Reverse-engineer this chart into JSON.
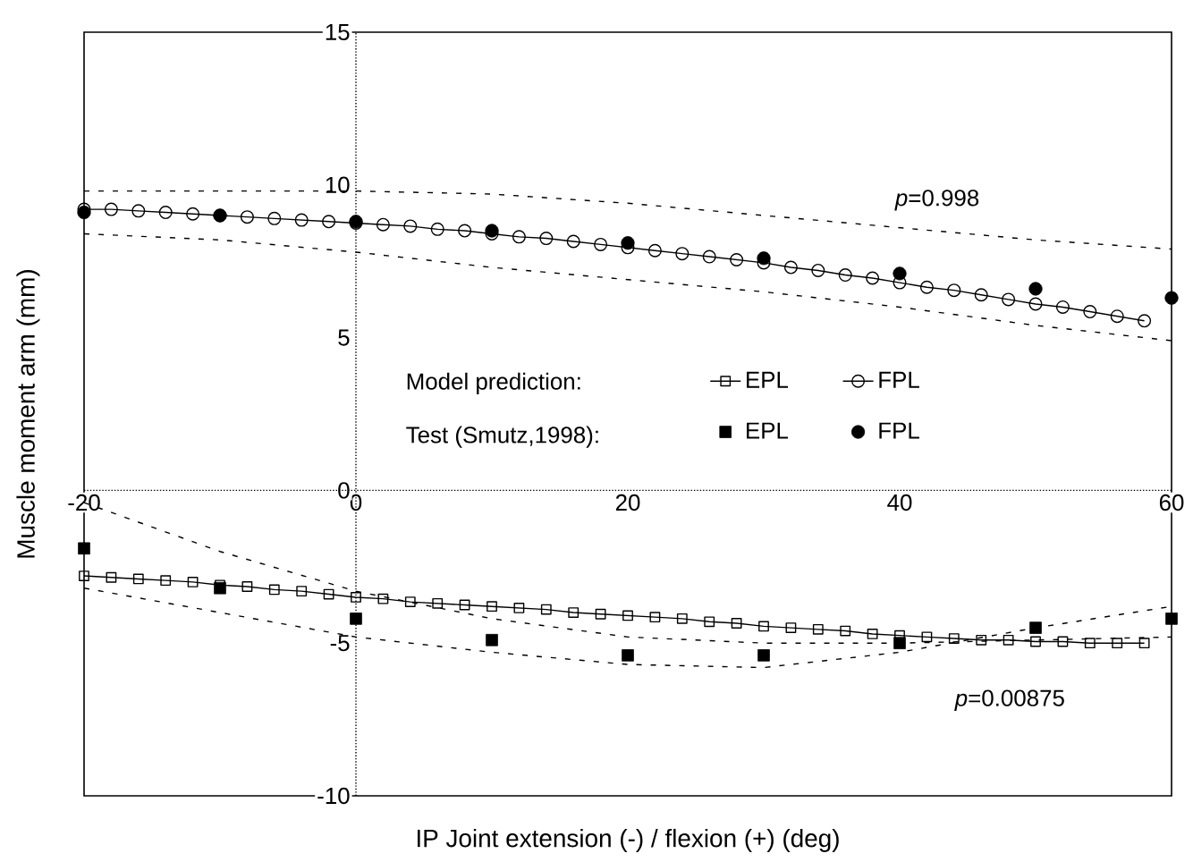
{
  "chart_data": {
    "type": "line",
    "xlabel": "IP Joint extension (-) / flexion (+) (deg)",
    "ylabel": "Muscle moment arm (mm)",
    "xlim": [
      -20,
      60
    ],
    "ylim": [
      -10,
      15
    ],
    "xticks": [
      -20,
      0,
      20,
      40,
      60
    ],
    "yticks": [
      -10,
      -5,
      0,
      5,
      10,
      15
    ],
    "legend": "center right",
    "annotations": [
      "Model prediction:",
      "Test (Smutz,1998):",
      "*p*=0.998",
      "*p*=0.00875"
    ],
    "series": [
      {
        "name": "EPL",
        "marker": "square",
        "color": "#000000",
        "x": [
          -20,
          -18,
          -16,
          -14,
          -12,
          -10,
          -8,
          -6,
          -4,
          -2,
          0,
          2,
          4,
          6,
          8,
          10,
          12,
          14,
          16,
          18,
          20,
          22,
          24,
          26,
          28,
          30,
          32,
          34,
          36,
          38,
          40,
          42,
          44,
          46,
          48,
          50,
          52,
          54,
          56,
          58
        ],
        "values": [
          -2.8,
          -2.85,
          -2.9,
          -2.95,
          -3.0,
          -3.1,
          -3.15,
          -3.25,
          -3.3,
          -3.4,
          -3.5,
          -3.55,
          -3.65,
          -3.7,
          -3.75,
          -3.8,
          -3.85,
          -3.9,
          -4.0,
          -4.05,
          -4.1,
          -4.15,
          -4.2,
          -4.3,
          -4.35,
          -4.45,
          -4.5,
          -4.55,
          -4.6,
          -4.7,
          -4.75,
          -4.8,
          -4.85,
          -4.9,
          -4.9,
          -4.95,
          -4.95,
          -5.0,
          -5.0,
          -5.0
        ]
      },
      {
        "name": "FPL",
        "marker": "circle",
        "color": "#000000",
        "x": [
          -20,
          -18,
          -16,
          -14,
          -12,
          -10,
          -8,
          -6,
          -4,
          -2,
          0,
          2,
          4,
          6,
          8,
          10,
          12,
          14,
          16,
          18,
          20,
          22,
          24,
          26,
          28,
          30,
          32,
          34,
          36,
          38,
          40,
          42,
          44,
          46,
          48,
          50,
          52,
          54,
          56,
          58
        ],
        "values": [
          9.2,
          9.2,
          9.15,
          9.1,
          9.05,
          9.0,
          8.95,
          8.9,
          8.85,
          8.8,
          8.75,
          8.7,
          8.65,
          8.55,
          8.5,
          8.4,
          8.3,
          8.25,
          8.15,
          8.05,
          7.95,
          7.85,
          7.75,
          7.65,
          7.55,
          7.45,
          7.3,
          7.2,
          7.05,
          6.95,
          6.8,
          6.65,
          6.55,
          6.4,
          6.25,
          6.1,
          6.0,
          5.85,
          5.7,
          5.55
        ]
      },
      {
        "name": "EPL",
        "type": "scatter",
        "marker": "square",
        "color": "#000000",
        "x": [
          -20,
          -10,
          0,
          10,
          20,
          30,
          40,
          50,
          60
        ],
        "values": [
          -1.9,
          -3.2,
          -4.2,
          -4.9,
          -5.4,
          -5.4,
          -5.0,
          -4.5,
          -4.2
        ]
      },
      {
        "name": "FPL",
        "type": "scatter",
        "marker": "circle",
        "color": "#000000",
        "x": [
          -20,
          -10,
          0,
          10,
          20,
          30,
          40,
          50,
          60
        ],
        "values": [
          9.1,
          9.0,
          8.8,
          8.5,
          8.1,
          7.6,
          7.1,
          6.6,
          6.3
        ]
      },
      {
        "type": "line",
        "marker": "none",
        "line_style": "dashed",
        "color": "#000000",
        "x": [
          -20,
          -10,
          0,
          10,
          20,
          30,
          40,
          50,
          60
        ],
        "values": [
          9.8,
          9.8,
          9.8,
          9.7,
          9.4,
          9.0,
          8.6,
          8.2,
          7.9
        ]
      },
      {
        "type": "line",
        "marker": "none",
        "line_style": "dashed",
        "color": "#000000",
        "x": [
          -20,
          -10,
          0,
          10,
          20,
          30,
          40,
          50,
          60
        ],
        "values": [
          8.4,
          8.2,
          7.8,
          7.3,
          6.9,
          6.5,
          6.0,
          5.4,
          4.9
        ]
      },
      {
        "type": "line",
        "marker": "none",
        "line_style": "dashed",
        "color": "#000000",
        "x": [
          -20,
          -10,
          0,
          10,
          20,
          30,
          40,
          50,
          60
        ],
        "values": [
          -0.4,
          -2.0,
          -3.3,
          -4.2,
          -4.8,
          -5.0,
          -5.0,
          -4.9,
          -4.8
        ]
      },
      {
        "type": "line",
        "marker": "none",
        "line_style": "dashed",
        "color": "#000000",
        "x": [
          -20,
          -10,
          0,
          10,
          20,
          30,
          40,
          50,
          60
        ],
        "values": [
          -3.2,
          -4.0,
          -4.8,
          -5.3,
          -5.7,
          -5.8,
          -5.3,
          -4.5,
          -3.8
        ]
      }
    ]
  }
}
